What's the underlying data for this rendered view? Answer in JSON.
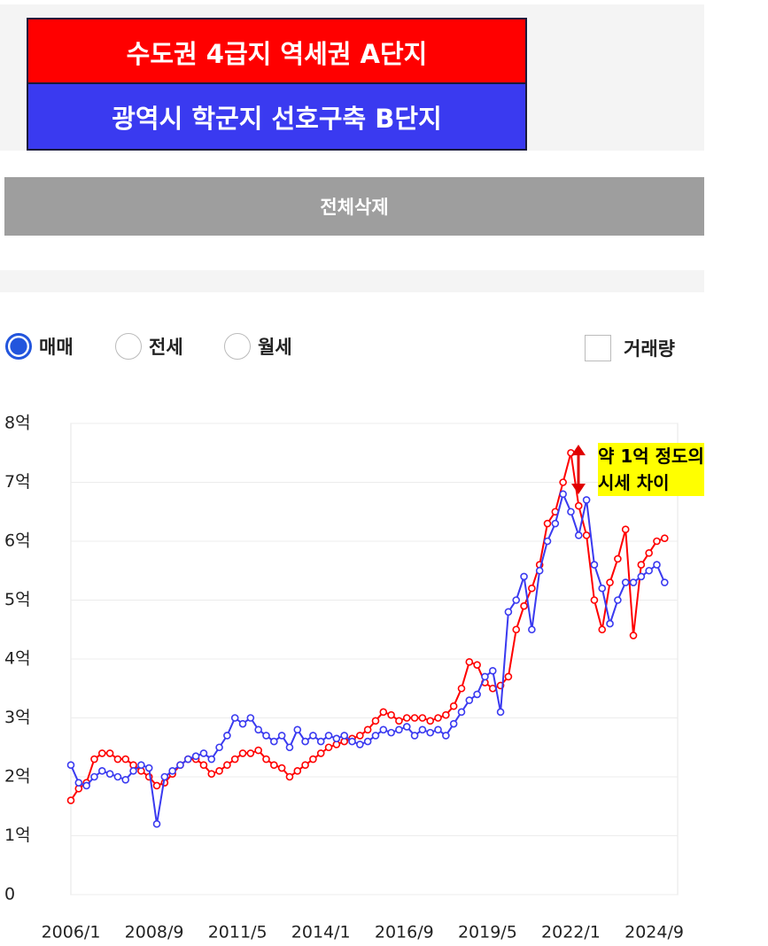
{
  "ui": {
    "delete_button": "전체삭제",
    "radios": [
      "매매",
      "전세",
      "월세"
    ],
    "checkbox": "거래량"
  },
  "chart_data": {
    "type": "line",
    "annotation": [
      "약 1억 정도의",
      "시세 차이"
    ],
    "x": [
      "2006/1",
      "2006/4",
      "2006/7",
      "2006/10",
      "2007/1",
      "2007/4",
      "2007/7",
      "2007/10",
      "2008/1",
      "2008/4",
      "2008/7",
      "2008/10",
      "2009/1",
      "2009/4",
      "2009/7",
      "2009/10",
      "2010/1",
      "2010/4",
      "2010/7",
      "2010/10",
      "2011/1",
      "2011/4",
      "2011/7",
      "2011/10",
      "2012/1",
      "2012/4",
      "2012/7",
      "2012/10",
      "2013/1",
      "2013/4",
      "2013/7",
      "2013/10",
      "2014/1",
      "2014/4",
      "2014/7",
      "2014/10",
      "2015/1",
      "2015/4",
      "2015/7",
      "2015/10",
      "2016/1",
      "2016/4",
      "2016/7",
      "2016/10",
      "2017/1",
      "2017/4",
      "2017/7",
      "2017/10",
      "2018/1",
      "2018/4",
      "2018/7",
      "2018/10",
      "2019/1",
      "2019/4",
      "2019/7",
      "2019/10",
      "2020/1",
      "2020/4",
      "2020/7",
      "2020/10",
      "2021/1",
      "2021/4",
      "2021/7",
      "2021/10",
      "2022/1",
      "2022/4",
      "2022/7",
      "2022/10",
      "2023/1",
      "2023/4",
      "2023/7",
      "2023/10",
      "2024/1",
      "2024/4",
      "2024/7",
      "2024/10",
      "2025/1"
    ],
    "series": [
      {
        "name": "수도권 4급지 역세권 A단지",
        "color": "#ff0000",
        "values": [
          1.6,
          1.8,
          1.9,
          2.3,
          2.4,
          2.4,
          2.3,
          2.3,
          2.2,
          2.1,
          2.0,
          1.85,
          1.9,
          2.05,
          2.2,
          2.3,
          2.3,
          2.2,
          2.05,
          2.1,
          2.2,
          2.3,
          2.4,
          2.4,
          2.45,
          2.3,
          2.2,
          2.15,
          2.0,
          2.1,
          2.2,
          2.3,
          2.4,
          2.5,
          2.55,
          2.6,
          2.65,
          2.7,
          2.8,
          2.95,
          3.1,
          3.05,
          2.95,
          3.0,
          3.0,
          3.0,
          2.95,
          3.0,
          3.05,
          3.2,
          3.5,
          3.95,
          3.9,
          3.6,
          3.5,
          3.55,
          3.7,
          4.5,
          4.9,
          5.2,
          5.6,
          6.3,
          6.5,
          7.0,
          7.5,
          6.6,
          6.1,
          5.0,
          4.5,
          5.3,
          5.7,
          6.2,
          4.4,
          5.6,
          5.8,
          6.0,
          6.05
        ]
      },
      {
        "name": "광역시 학군지 선호구축 B단지",
        "color": "#3a3af0",
        "values": [
          2.2,
          1.9,
          1.85,
          2.0,
          2.1,
          2.05,
          2.0,
          1.95,
          2.1,
          2.2,
          2.15,
          1.2,
          2.0,
          2.1,
          2.2,
          2.3,
          2.35,
          2.4,
          2.3,
          2.5,
          2.7,
          3.0,
          2.9,
          3.0,
          2.8,
          2.7,
          2.6,
          2.7,
          2.5,
          2.8,
          2.6,
          2.7,
          2.6,
          2.7,
          2.65,
          2.7,
          2.6,
          2.55,
          2.6,
          2.7,
          2.8,
          2.75,
          2.8,
          2.85,
          2.7,
          2.8,
          2.75,
          2.8,
          2.7,
          2.9,
          3.1,
          3.3,
          3.4,
          3.7,
          3.8,
          3.1,
          4.8,
          5.0,
          5.4,
          4.5,
          5.5,
          6.0,
          6.3,
          6.8,
          6.5,
          6.1,
          6.7,
          5.6,
          5.2,
          4.6,
          5.0,
          5.3,
          5.3,
          5.4,
          5.5,
          5.6,
          5.3
        ]
      }
    ],
    "xlim": [
      "2006/1",
      "2025/6"
    ],
    "xticks": [
      "2006/1",
      "2008/9",
      "2011/5",
      "2014/1",
      "2016/9",
      "2019/5",
      "2022/1",
      "2024/9"
    ],
    "ylim": [
      0,
      8
    ],
    "yticks": [
      0,
      {
        "value": 1,
        "label": "1억"
      },
      {
        "value": 2,
        "label": "2억"
      },
      {
        "value": 3,
        "label": "3억"
      },
      {
        "value": 4,
        "label": "4억"
      },
      {
        "value": 5,
        "label": "5억"
      },
      {
        "value": 6,
        "label": "6억"
      },
      {
        "value": 7,
        "label": "7억"
      },
      {
        "value": 8,
        "label": "8억"
      }
    ],
    "grid": true
  }
}
